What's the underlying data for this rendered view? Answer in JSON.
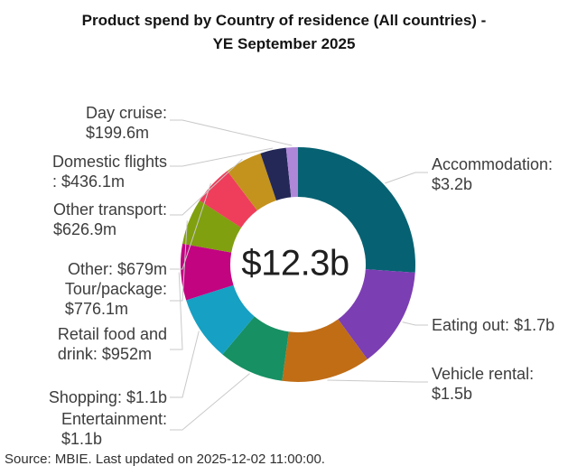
{
  "page": {
    "title_lines": [
      "Product spend by Country of residence (All countries) -",
      "YE September 2025"
    ],
    "footer": "Source: MBIE. Last updated on 2025-12-02 11:00:00."
  },
  "chart_data": {
    "type": "pie",
    "subtype": "donut",
    "title": "Product spend by Country of residence (All countries) - YE September 2025",
    "center_label": "$12.3b",
    "total_text": "$12.3b",
    "total_millions": 12269.7,
    "currency": "NZD",
    "legend": "none (labels outside with gray connector lines)",
    "slice_order": "clockwise from 12 o'clock, descending value",
    "slices": [
      {
        "id": "accommodation",
        "name": "Accommodation",
        "value_millions": 3200,
        "value_text": "$3.2b",
        "color": "#066272",
        "label_lines": [
          "Accommodation:",
          "$3.2b"
        ]
      },
      {
        "id": "eating-out",
        "name": "Eating out",
        "value_millions": 1700,
        "value_text": "$1.7b",
        "color": "#7c3eb3",
        "label_lines": [
          "Eating out: $1.7b"
        ]
      },
      {
        "id": "vehicle-rental",
        "name": "Vehicle rental",
        "value_millions": 1500,
        "value_text": "$1.5b",
        "color": "#c06d16",
        "label_lines": [
          "Vehicle rental:",
          "$1.5b"
        ]
      },
      {
        "id": "entertainment",
        "name": "Entertainment",
        "value_millions": 1100,
        "value_text": "$1.1b",
        "color": "#179063",
        "label_lines": [
          "Entertainment:",
          "$1.1b"
        ]
      },
      {
        "id": "shopping",
        "name": "Shopping",
        "value_millions": 1100,
        "value_text": "$1.1b",
        "color": "#16a0c3",
        "label_lines": [
          "Shopping: $1.1b"
        ]
      },
      {
        "id": "retail-food-drink",
        "name": "Retail food and drink",
        "value_millions": 952,
        "value_text": "$952m",
        "color": "#c20481",
        "label_lines": [
          "Retail food and",
          "drink: $952m"
        ]
      },
      {
        "id": "tour-package",
        "name": "Tour/package",
        "value_millions": 776.1,
        "value_text": "$776.1m",
        "color": "#80a00f",
        "label_lines": [
          "Tour/package:",
          "$776.1m"
        ]
      },
      {
        "id": "other",
        "name": "Other",
        "value_millions": 679,
        "value_text": "$679m",
        "color": "#ee3e5b",
        "label_lines": [
          "Other: $679m"
        ]
      },
      {
        "id": "other-transport",
        "name": "Other transport",
        "value_millions": 626.9,
        "value_text": "$626.9m",
        "color": "#c4931d",
        "label_lines": [
          "Other transport:",
          "$626.9m"
        ]
      },
      {
        "id": "domestic-flights",
        "name": "Domestic flights",
        "value_millions": 436.1,
        "value_text": "$436.1m",
        "color": "#232857",
        "label_lines": [
          "Domestic flights",
          ": $436.1m"
        ]
      },
      {
        "id": "day-cruise",
        "name": "Day cruise",
        "value_millions": 199.6,
        "value_text": "$199.6m",
        "color": "#ae87d8",
        "label_lines": [
          "Day cruise:",
          "$199.6m"
        ]
      }
    ],
    "connector_color": "#c9c9c9"
  }
}
